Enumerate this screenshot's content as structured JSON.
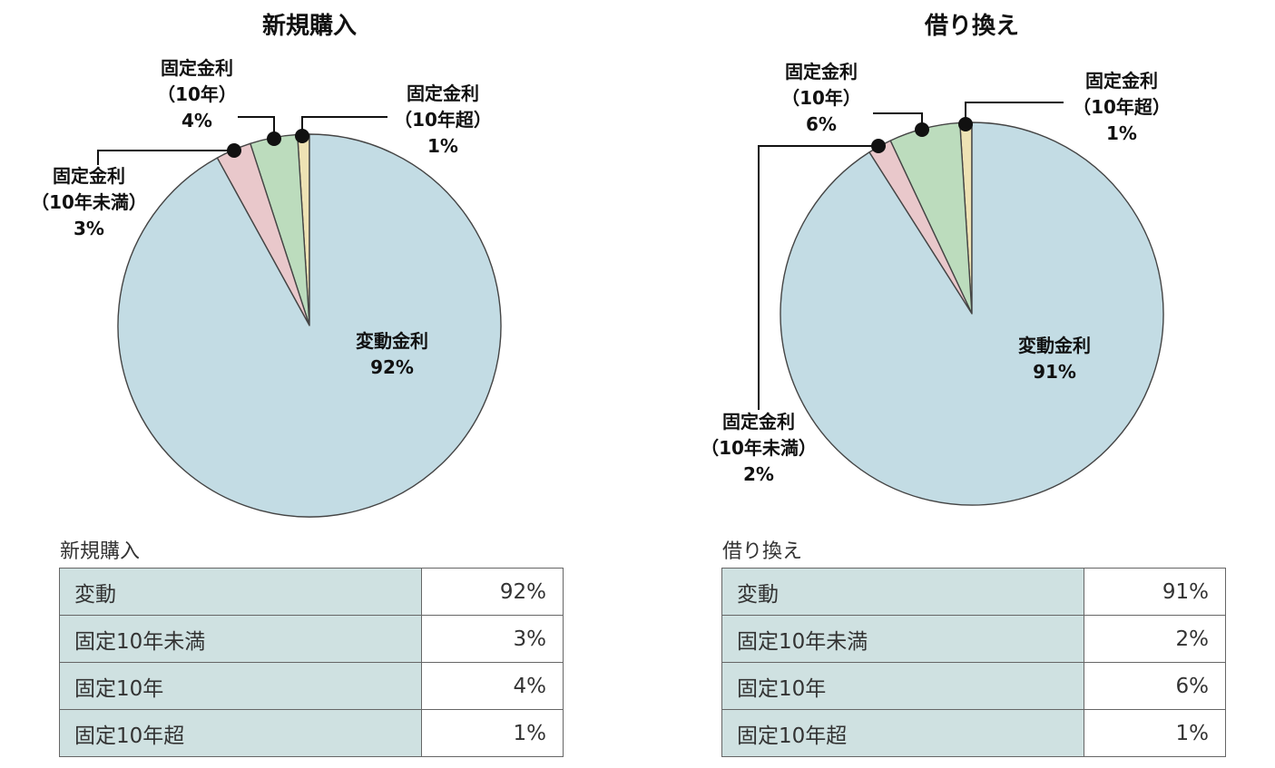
{
  "chart_data": [
    {
      "type": "pie",
      "title": "新規購入",
      "slices": [
        {
          "key": "fixed_over10",
          "label": [
            "固定金利",
            "（10年超）",
            "1%"
          ],
          "value": 1,
          "color": "#eee2b4"
        },
        {
          "key": "fixed_10",
          "label": [
            "固定金利",
            "（10年）",
            "4%"
          ],
          "value": 4,
          "color": "#bcdcbd"
        },
        {
          "key": "fixed_under10",
          "label": [
            "固定金利",
            "（10年未満）",
            "3%"
          ],
          "value": 3,
          "color": "#e9c8cb"
        },
        {
          "key": "variable",
          "label": [
            "変動金利",
            "92%"
          ],
          "value": 92,
          "color": "#c3dce4"
        }
      ]
    },
    {
      "type": "pie",
      "title": "借り換え",
      "slices": [
        {
          "key": "fixed_over10",
          "label": [
            "固定金利",
            "（10年超）",
            "1%"
          ],
          "value": 1,
          "color": "#eee2b4"
        },
        {
          "key": "fixed_10",
          "label": [
            "固定金利",
            "（10年）",
            "6%"
          ],
          "value": 6,
          "color": "#bcdcbd"
        },
        {
          "key": "fixed_under10",
          "label": [
            "固定金利",
            "（10年未満）",
            "2%"
          ],
          "value": 2,
          "color": "#e9c8cb"
        },
        {
          "key": "variable",
          "label": [
            "変動金利",
            "91%"
          ],
          "value": 91,
          "color": "#c3dce4"
        }
      ]
    }
  ],
  "tables": [
    {
      "caption": "新規購入",
      "rows": [
        {
          "label": "変動",
          "value": "92%"
        },
        {
          "label": "固定10年未満",
          "value": "3%"
        },
        {
          "label": "固定10年",
          "value": "4%"
        },
        {
          "label": "固定10年超",
          "value": "1%"
        }
      ]
    },
    {
      "caption": "借り換え",
      "rows": [
        {
          "label": "変動",
          "value": "91%"
        },
        {
          "label": "固定10年未満",
          "value": "2%"
        },
        {
          "label": "固定10年",
          "value": "6%"
        },
        {
          "label": "固定10年超",
          "value": "1%"
        }
      ]
    }
  ]
}
